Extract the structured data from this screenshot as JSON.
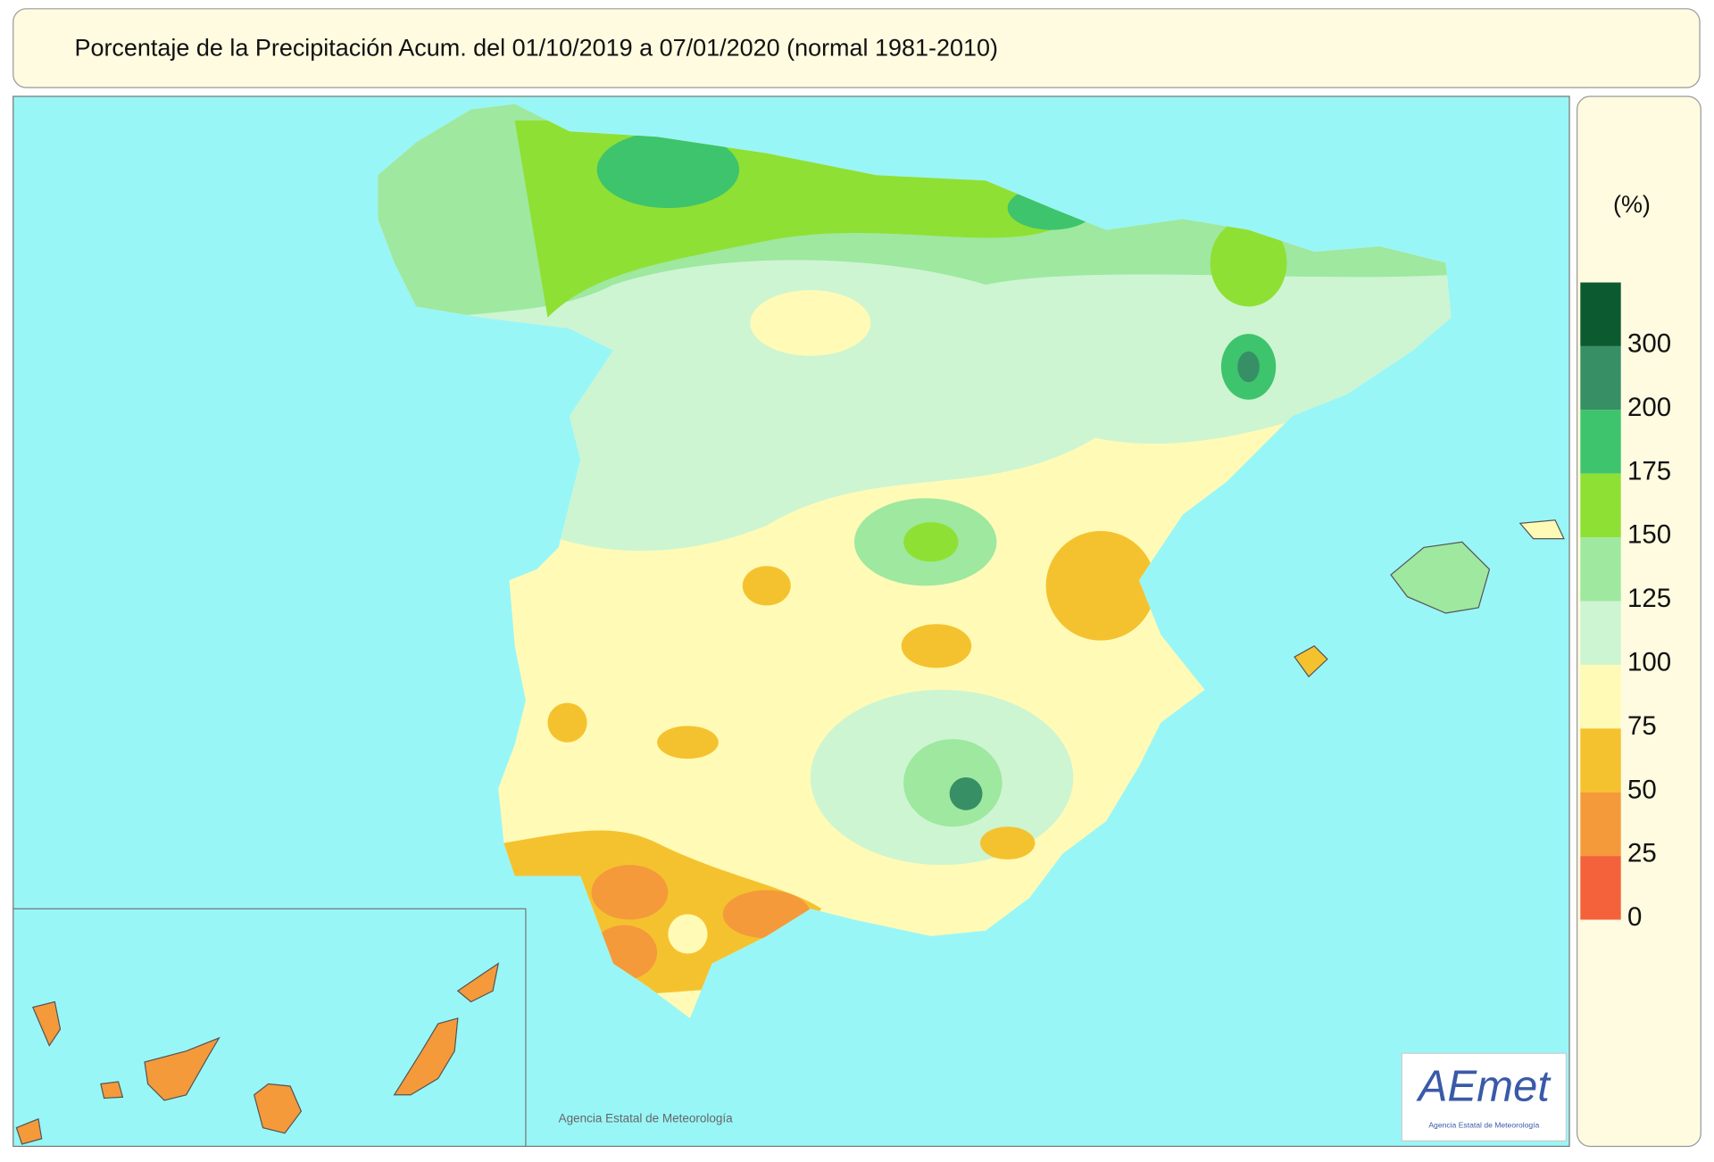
{
  "header": {
    "title": "Porcentaje de la Precipitación Acum. del 01/10/2019 a  07/01/2020  (normal 1981-2010)"
  },
  "legend": {
    "unit": "(%)",
    "ticks": [
      300,
      200,
      175,
      150,
      125,
      100,
      75,
      50,
      25,
      0
    ],
    "colors": [
      "#0c5a30",
      "#378f66",
      "#3ec46c",
      "#8fe034",
      "#9ee8a0",
      "#cdf5d2",
      "#fffbb7",
      "#f5c22f",
      "#f49a3b",
      "#f3623a"
    ]
  },
  "footer": {
    "credit": "Agencia Estatal de Meteorología",
    "logo": "AEmet",
    "logo_caption": "Agencia Estatal de Meteorología"
  }
}
